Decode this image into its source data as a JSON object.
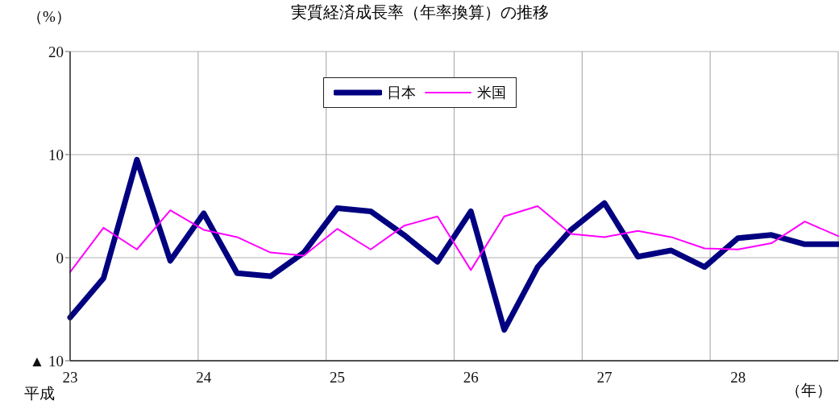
{
  "chart_data": {
    "type": "line",
    "title": "実質経済成長率（年率換算）の推移",
    "ylabel": "（%）",
    "xlabel": "（年）",
    "annotations": [
      "平成"
    ],
    "categories": [
      "23",
      null,
      null,
      null,
      "24",
      null,
      null,
      null,
      "25",
      null,
      null,
      null,
      "26",
      null,
      null,
      null,
      "27",
      null,
      null,
      null,
      "28",
      null,
      null,
      null
    ],
    "series": [
      {
        "name": "日本",
        "color": "#000080",
        "values": [
          -5.8,
          -2.0,
          9.5,
          -0.3,
          4.3,
          -1.5,
          -1.8,
          0.5,
          4.8,
          4.5,
          2.2,
          -0.4,
          4.5,
          -7.0,
          -0.9,
          2.7,
          5.3,
          0.1,
          0.7,
          -0.9,
          1.9,
          2.2,
          1.3,
          1.3
        ]
      },
      {
        "name": "米国",
        "color": "#ff00ff",
        "values": [
          -1.4,
          2.9,
          0.8,
          4.6,
          2.7,
          2.0,
          0.5,
          0.2,
          2.8,
          0.8,
          3.1,
          4.0,
          -1.2,
          4.0,
          5.0,
          2.3,
          2.0,
          2.6,
          2.0,
          0.9,
          0.8,
          1.4,
          3.5,
          2.1
        ]
      }
    ],
    "ylim": [
      -10,
      20
    ],
    "yticks": [
      {
        "value": -10,
        "label": "▲ 10"
      },
      0,
      10,
      20
    ],
    "grid": true,
    "legend": "top",
    "marker": "none"
  }
}
